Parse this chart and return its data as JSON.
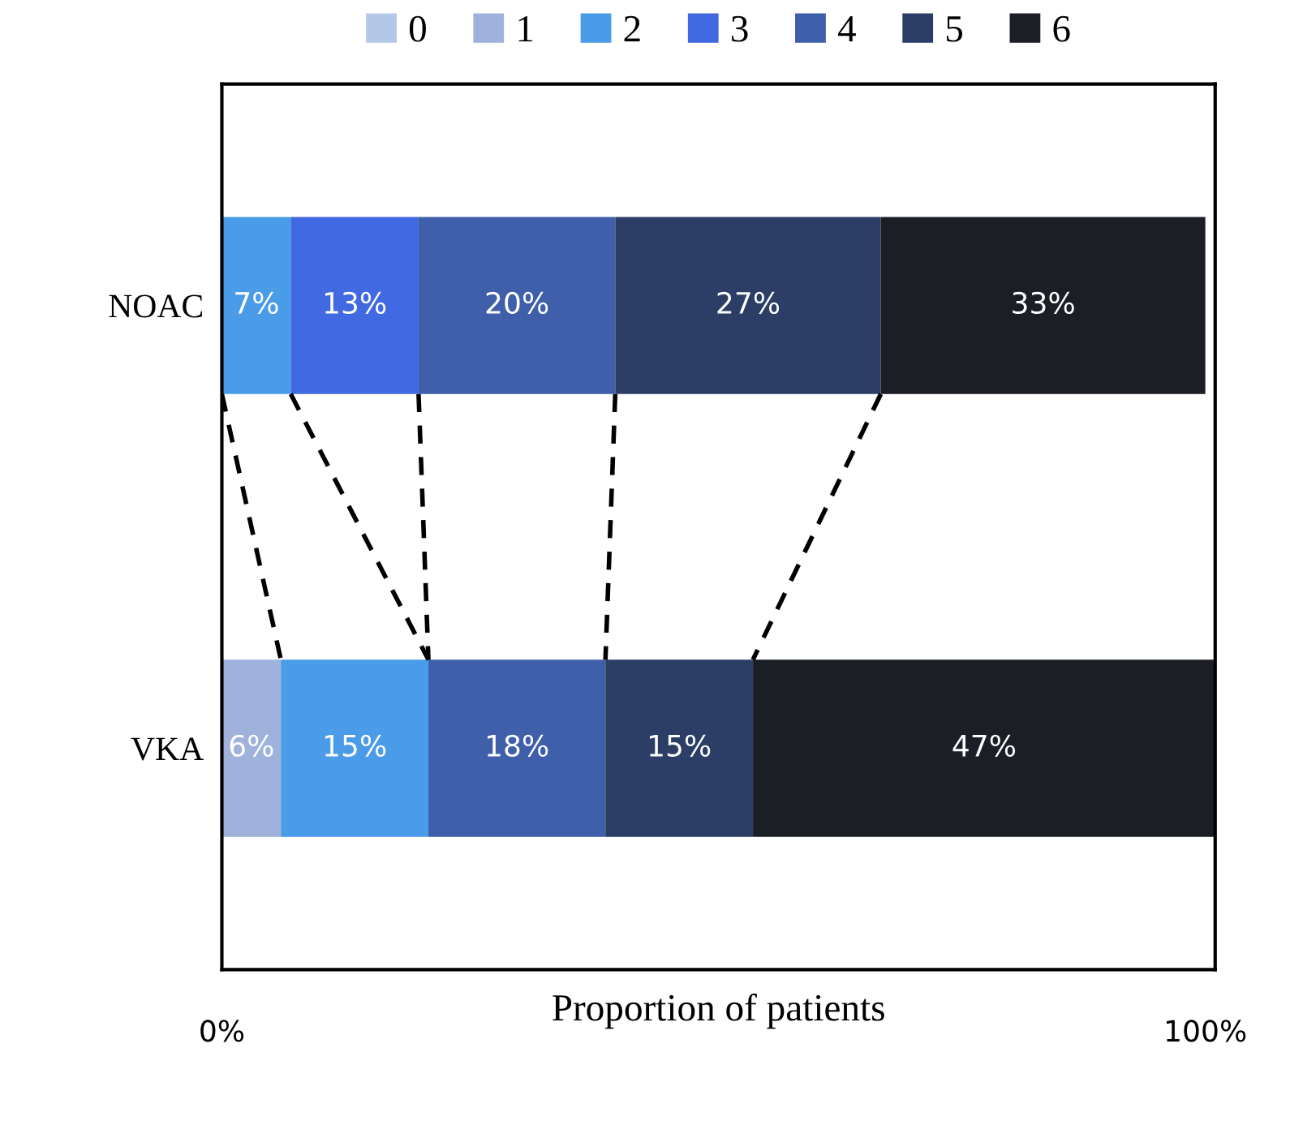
{
  "chart_data": {
    "type": "bar",
    "orientation": "horizontal",
    "stacked": true,
    "xlabel": "Proportion of patients",
    "categories": [
      "NOAC",
      "VKA"
    ],
    "series": [
      {
        "name": "0",
        "color": "#b4c7e7",
        "values": [
          0,
          0
        ],
        "value_labels": [
          null,
          null
        ]
      },
      {
        "name": "1",
        "color": "#9fb2dc",
        "values": [
          0,
          6
        ],
        "value_labels": [
          null,
          "6%"
        ]
      },
      {
        "name": "2",
        "color": "#4a9be8",
        "values": [
          7,
          15
        ],
        "value_labels": [
          "7%",
          "15%"
        ]
      },
      {
        "name": "3",
        "color": "#4169e1",
        "values": [
          13,
          0
        ],
        "value_labels": [
          "13%",
          null
        ]
      },
      {
        "name": "4",
        "color": "#3f5faa",
        "values": [
          20,
          18
        ],
        "value_labels": [
          "20%",
          "18%"
        ]
      },
      {
        "name": "5",
        "color": "#2c3e66",
        "values": [
          27,
          15
        ],
        "value_labels": [
          "27%",
          "15%"
        ]
      },
      {
        "name": "6",
        "color": "#1c1e26",
        "values": [
          33,
          47
        ],
        "value_labels": [
          "33%",
          "47%"
        ]
      }
    ],
    "xlim": [
      0,
      101
    ],
    "xticks": [
      {
        "value": 0,
        "label": "0%"
      },
      {
        "value": 100,
        "label": "100%"
      }
    ],
    "legend": "top",
    "grid": false
  }
}
